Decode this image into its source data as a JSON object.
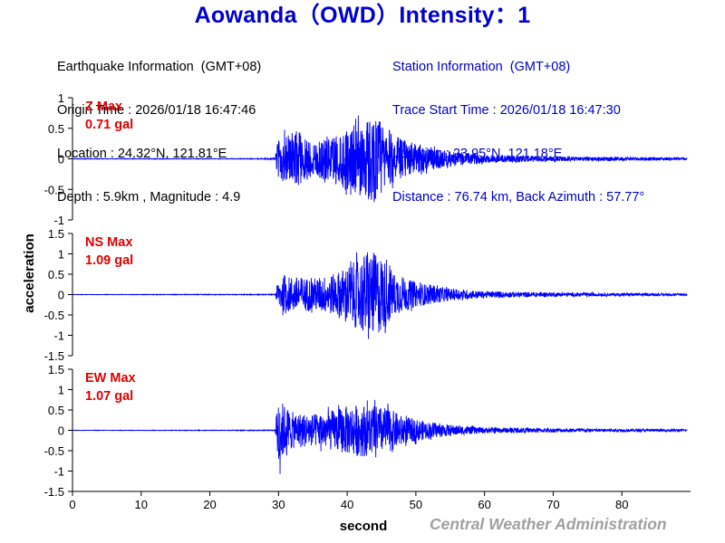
{
  "title": "Aowanda（OWD）Intensity：1",
  "earthquake_info": {
    "header": "Earthquake Information  (GMT+08)",
    "origin_time": "Origin Time : 2026/01/18 16:47:46",
    "location": "Location : 24.32°N, 121.81°E",
    "depth_magnitude": "Depth : 5.9km , Magnitude : 4.9"
  },
  "station_info": {
    "header": "Station Information  (GMT+08)",
    "trace_start": "Trace Start Time : 2026/01/18 16:47:30",
    "location": "Location : 23.95°N, 121.18°E",
    "distance": "Distance : 76.74 km, Back Azimuth : 57.77°"
  },
  "credit": "Central Weather Administration",
  "colors": {
    "title": "#0000cc",
    "trace": "#0000ff",
    "max_label": "#e00000",
    "station_text": "#0000cc",
    "credit": "#a0a0a0"
  },
  "chart_data": [
    {
      "type": "line",
      "component": "Z",
      "label": "Z Max",
      "max_text": "0.71 gal",
      "max_gal": 0.71,
      "ylim": [
        -1,
        1
      ],
      "yticks": [
        1,
        0.5,
        0,
        -0.5,
        -1
      ],
      "ytick_labels": [
        "1",
        "0.5",
        "0",
        "-0.5",
        "-1"
      ],
      "xlim": [
        0,
        90
      ],
      "onset_s": 29.5,
      "duration_s": 89.5,
      "envelope": [
        [
          0,
          0.005
        ],
        [
          25,
          0.005
        ],
        [
          29.5,
          0.01
        ],
        [
          30,
          0.4
        ],
        [
          31,
          0.4
        ],
        [
          33,
          0.45
        ],
        [
          35,
          0.3
        ],
        [
          38,
          0.4
        ],
        [
          40,
          0.5
        ],
        [
          42,
          0.6
        ],
        [
          43,
          0.71
        ],
        [
          45,
          0.65
        ],
        [
          47,
          0.35
        ],
        [
          50,
          0.25
        ],
        [
          55,
          0.12
        ],
        [
          60,
          0.07
        ],
        [
          70,
          0.04
        ],
        [
          80,
          0.03
        ],
        [
          89.5,
          0.02
        ]
      ]
    },
    {
      "type": "line",
      "component": "NS",
      "label": "NS Max",
      "max_text": "1.09 gal",
      "max_gal": 1.09,
      "ylim": [
        -1.5,
        1.5
      ],
      "yticks": [
        1.5,
        1,
        0.5,
        0,
        -0.5,
        -1,
        -1.5
      ],
      "ytick_labels": [
        "1.5",
        "1",
        "0.5",
        "0",
        "-0.5",
        "-1",
        "-1.5"
      ],
      "xlim": [
        0,
        90
      ],
      "onset_s": 29.5,
      "duration_s": 89.5,
      "envelope": [
        [
          0,
          0.004
        ],
        [
          29.5,
          0.01
        ],
        [
          30,
          0.4
        ],
        [
          32,
          0.45
        ],
        [
          35,
          0.4
        ],
        [
          38,
          0.5
        ],
        [
          40,
          0.7
        ],
        [
          42,
          0.9
        ],
        [
          43,
          1.09
        ],
        [
          45,
          0.95
        ],
        [
          47,
          0.5
        ],
        [
          50,
          0.3
        ],
        [
          55,
          0.15
        ],
        [
          60,
          0.08
        ],
        [
          70,
          0.05
        ],
        [
          80,
          0.035
        ],
        [
          89.5,
          0.025
        ]
      ]
    },
    {
      "type": "line",
      "component": "EW",
      "label": "EW Max",
      "max_text": "1.07 gal",
      "max_gal": 1.07,
      "ylim": [
        -1.5,
        1.5
      ],
      "yticks": [
        1.5,
        1,
        0.5,
        0,
        -0.5,
        -1,
        -1.5
      ],
      "ytick_labels": [
        "1.5",
        "1",
        "0.5",
        "0",
        "-0.5",
        "-1",
        "-1.5"
      ],
      "xlim": [
        0,
        90
      ],
      "onset_s": 29.5,
      "duration_s": 89.5,
      "envelope": [
        [
          0,
          0.004
        ],
        [
          29.5,
          0.01
        ],
        [
          30,
          1.07
        ],
        [
          30.5,
          0.7
        ],
        [
          32,
          0.45
        ],
        [
          35,
          0.4
        ],
        [
          38,
          0.5
        ],
        [
          40,
          0.6
        ],
        [
          42,
          0.65
        ],
        [
          44,
          0.6
        ],
        [
          46,
          0.55
        ],
        [
          48,
          0.35
        ],
        [
          52,
          0.2
        ],
        [
          56,
          0.12
        ],
        [
          60,
          0.07
        ],
        [
          70,
          0.05
        ],
        [
          80,
          0.035
        ],
        [
          89.5,
          0.025
        ]
      ]
    }
  ],
  "x_axis": {
    "label": "second",
    "ticks": [
      0,
      10,
      20,
      30,
      40,
      50,
      60,
      70,
      80
    ],
    "tick_labels": [
      "0",
      "10",
      "20",
      "30",
      "40",
      "50",
      "60",
      "70",
      "80"
    ]
  },
  "y_axis": {
    "label": "acceleration"
  }
}
